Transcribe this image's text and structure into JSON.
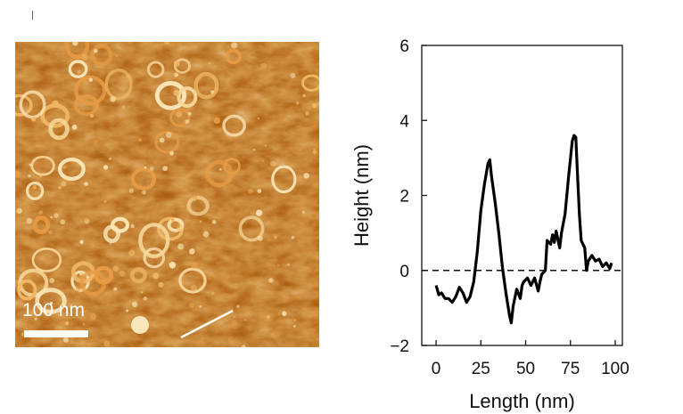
{
  "image_panel": {
    "scale_bar_label": "100 nm",
    "colormap": [
      "#6a1b00",
      "#a83d08",
      "#d9781e",
      "#f4c98a"
    ]
  },
  "chart_data": {
    "type": "line",
    "title": "",
    "xlabel": "Length (nm)",
    "ylabel": "Height (nm)",
    "xlim": [
      -8,
      104
    ],
    "ylim": [
      -2,
      6
    ],
    "xticks": [
      0,
      25,
      50,
      75,
      100
    ],
    "yticks": [
      -2,
      0,
      2,
      4,
      6
    ],
    "grid": false,
    "reference_line": {
      "y": 0,
      "style": "dashed"
    },
    "series": [
      {
        "color": "#000000",
        "x": [
          0,
          1.5,
          3,
          5,
          7,
          9,
          11,
          13,
          15,
          17,
          19,
          21,
          23,
          25,
          27,
          29,
          30,
          31,
          33,
          35,
          37,
          39,
          41,
          42,
          43,
          45,
          47,
          48,
          49,
          51,
          53,
          55,
          57,
          58,
          59,
          61,
          62,
          64,
          65,
          66,
          67,
          69,
          70,
          72,
          74,
          76,
          77,
          78,
          79,
          80,
          81,
          83,
          84,
          85,
          87,
          89,
          91,
          93,
          95,
          97,
          98
        ],
        "y": [
          -0.4,
          -0.65,
          -0.6,
          -0.75,
          -0.75,
          -0.85,
          -0.7,
          -0.45,
          -0.6,
          -0.85,
          -0.7,
          -0.3,
          0.5,
          1.6,
          2.3,
          2.85,
          2.95,
          2.5,
          1.8,
          1.0,
          0.1,
          -0.6,
          -1.2,
          -1.4,
          -0.95,
          -0.5,
          -0.75,
          -0.4,
          -0.3,
          -0.2,
          -0.4,
          -0.2,
          -0.55,
          -0.3,
          -0.1,
          0.0,
          0.8,
          0.7,
          0.95,
          0.75,
          1.05,
          0.6,
          1.0,
          1.5,
          2.5,
          3.45,
          3.6,
          3.55,
          2.5,
          1.5,
          0.8,
          0.6,
          0.0,
          0.25,
          0.4,
          0.25,
          0.3,
          0.1,
          0.2,
          0.05,
          0.2
        ]
      }
    ]
  }
}
